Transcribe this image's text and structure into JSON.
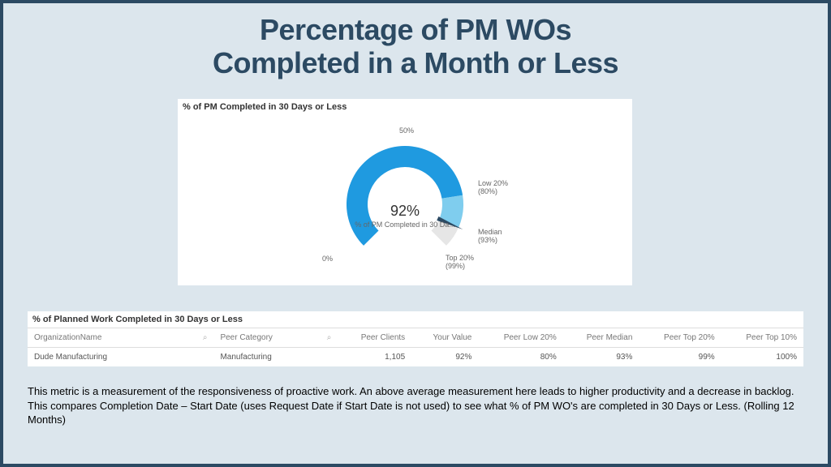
{
  "title_line1": "Percentage of PM WOs",
  "title_line2": "Completed in a Month or Less",
  "gauge": {
    "panel_title": "% of PM Completed in 30 Days or Less",
    "type": "gauge",
    "min": 0,
    "max": 100,
    "value": 92,
    "value_label": "92%",
    "sub_label": "% of PM Completed in 30 Da...",
    "axis_min_label": "0%",
    "axis_mid_label": "50%",
    "ring_bg_color": "#e6e6e6",
    "ring_fill_color": "#1f9ae0",
    "ring_tail_color": "#7fcdee",
    "needle_color": "#2c4a63",
    "ring_thickness": 26,
    "outer_radius": 72,
    "markers": [
      {
        "label_a": "Low 20%",
        "label_b": "(80%)",
        "value": 80
      },
      {
        "label_a": "Median",
        "label_b": "(93%)",
        "value": 93
      },
      {
        "label_a": "Top 20%",
        "label_b": "(99%)",
        "value": 99
      }
    ]
  },
  "table": {
    "panel_title": "% of Planned Work Completed in 30 Days or Less",
    "columns": {
      "org": "OrganizationName",
      "cat": "Peer Category",
      "clients": "Peer Clients",
      "your": "Your Value",
      "low": "Peer Low 20%",
      "median": "Peer Median",
      "top20": "Peer Top 20%",
      "top10": "Peer Top 10%"
    },
    "row": {
      "org": "Dude Manufacturing",
      "cat": "Manufacturing",
      "clients": "1,105",
      "your": "92%",
      "low": "80%",
      "median": "93%",
      "top20": "99%",
      "top10": "100%"
    }
  },
  "description": "This metric is a measurement of the responsiveness of proactive work.  An above average measurement here leads to higher productivity and a decrease in backlog. This compares Completion Date – Start Date (uses Request Date if Start Date is not used) to see what % of PM WO's are completed in 30 Days or Less. (Rolling 12 Months)",
  "colors": {
    "slide_bg": "#dce6ed",
    "frame": "#2c4a63",
    "title": "#2c4a63"
  }
}
